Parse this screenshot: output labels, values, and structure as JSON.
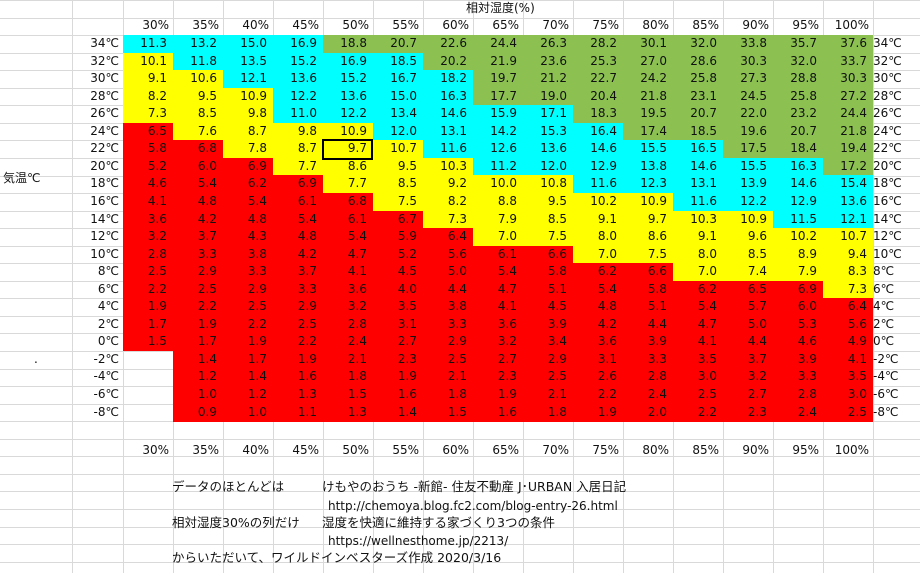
{
  "title": "相対湿度(%)",
  "row_axis_label": "気温℃",
  "humidity_headers": [
    "30%",
    "35%",
    "40%",
    "45%",
    "50%",
    "55%",
    "60%",
    "65%",
    "70%",
    "75%",
    "80%",
    "85%",
    "90%",
    "95%",
    "100%"
  ],
  "temperature_labels": [
    "34℃",
    "32℃",
    "30℃",
    "28℃",
    "26℃",
    "24℃",
    "22℃",
    "20℃",
    "18℃",
    "16℃",
    "14℃",
    "12℃",
    "10℃",
    "8℃",
    "6℃",
    "4℃",
    "2℃",
    "0℃",
    "-2℃",
    "-4℃",
    "-6℃",
    "-8℃"
  ],
  "values": [
    [
      "11.3",
      "13.2",
      "15.0",
      "16.9",
      "18.8",
      "20.7",
      "22.6",
      "24.4",
      "26.3",
      "28.2",
      "30.1",
      "32.0",
      "33.8",
      "35.7",
      "37.6"
    ],
    [
      "10.1",
      "11.8",
      "13.5",
      "15.2",
      "16.9",
      "18.5",
      "20.2",
      "21.9",
      "23.6",
      "25.3",
      "27.0",
      "28.6",
      "30.3",
      "32.0",
      "33.7"
    ],
    [
      "9.1",
      "10.6",
      "12.1",
      "13.6",
      "15.2",
      "16.7",
      "18.2",
      "19.7",
      "21.2",
      "22.7",
      "24.2",
      "25.8",
      "27.3",
      "28.8",
      "30.3"
    ],
    [
      "8.2",
      "9.5",
      "10.9",
      "12.2",
      "13.6",
      "15.0",
      "16.3",
      "17.7",
      "19.0",
      "20.4",
      "21.8",
      "23.1",
      "24.5",
      "25.8",
      "27.2"
    ],
    [
      "7.3",
      "8.5",
      "9.8",
      "11.0",
      "12.2",
      "13.4",
      "14.6",
      "15.9",
      "17.1",
      "18.3",
      "19.5",
      "20.7",
      "22.0",
      "23.2",
      "24.4"
    ],
    [
      "6.5",
      "7.6",
      "8.7",
      "9.8",
      "10.9",
      "12.0",
      "13.1",
      "14.2",
      "15.3",
      "16.4",
      "17.4",
      "18.5",
      "19.6",
      "20.7",
      "21.8"
    ],
    [
      "5.8",
      "6.8",
      "7.8",
      "8.7",
      "9.7",
      "10.7",
      "11.6",
      "12.6",
      "13.6",
      "14.6",
      "15.5",
      "16.5",
      "17.5",
      "18.4",
      "19.4"
    ],
    [
      "5.2",
      "6.0",
      "6.9",
      "7.7",
      "8.6",
      "9.5",
      "10.3",
      "11.2",
      "12.0",
      "12.9",
      "13.8",
      "14.6",
      "15.5",
      "16.3",
      "17.2"
    ],
    [
      "4.6",
      "5.4",
      "6.2",
      "6.9",
      "7.7",
      "8.5",
      "9.2",
      "10.0",
      "10.8",
      "11.6",
      "12.3",
      "13.1",
      "13.9",
      "14.6",
      "15.4"
    ],
    [
      "4.1",
      "4.8",
      "5.4",
      "6.1",
      "6.8",
      "7.5",
      "8.2",
      "8.8",
      "9.5",
      "10.2",
      "10.9",
      "11.6",
      "12.2",
      "12.9",
      "13.6"
    ],
    [
      "3.6",
      "4.2",
      "4.8",
      "5.4",
      "6.1",
      "6.7",
      "7.3",
      "7.9",
      "8.5",
      "9.1",
      "9.7",
      "10.3",
      "10.9",
      "11.5",
      "12.1"
    ],
    [
      "3.2",
      "3.7",
      "4.3",
      "4.8",
      "5.4",
      "5.9",
      "6.4",
      "7.0",
      "7.5",
      "8.0",
      "8.6",
      "9.1",
      "9.6",
      "10.2",
      "10.7"
    ],
    [
      "2.8",
      "3.3",
      "3.8",
      "4.2",
      "4.7",
      "5.2",
      "5.6",
      "6.1",
      "6.6",
      "7.0",
      "7.5",
      "8.0",
      "8.5",
      "8.9",
      "9.4"
    ],
    [
      "2.5",
      "2.9",
      "3.3",
      "3.7",
      "4.1",
      "4.5",
      "5.0",
      "5.4",
      "5.8",
      "6.2",
      "6.6",
      "7.0",
      "7.4",
      "7.9",
      "8.3"
    ],
    [
      "2.2",
      "2.5",
      "2.9",
      "3.3",
      "3.6",
      "4.0",
      "4.4",
      "4.7",
      "5.1",
      "5.4",
      "5.8",
      "6.2",
      "6.5",
      "6.9",
      "7.3"
    ],
    [
      "1.9",
      "2.2",
      "2.5",
      "2.9",
      "3.2",
      "3.5",
      "3.8",
      "4.1",
      "4.5",
      "4.8",
      "5.1",
      "5.4",
      "5.7",
      "6.0",
      "6.4"
    ],
    [
      "1.7",
      "1.9",
      "2.2",
      "2.5",
      "2.8",
      "3.1",
      "3.3",
      "3.6",
      "3.9",
      "4.2",
      "4.4",
      "4.7",
      "5.0",
      "5.3",
      "5.6"
    ],
    [
      "1.5",
      "1.7",
      "1.9",
      "2.2",
      "2.4",
      "2.7",
      "2.9",
      "3.2",
      "3.4",
      "3.6",
      "3.9",
      "4.1",
      "4.4",
      "4.6",
      "4.9"
    ],
    [
      "",
      "1.4",
      "1.7",
      "1.9",
      "2.1",
      "2.3",
      "2.5",
      "2.7",
      "2.9",
      "3.1",
      "3.3",
      "3.5",
      "3.7",
      "3.9",
      "4.1"
    ],
    [
      "",
      "1.2",
      "1.4",
      "1.6",
      "1.8",
      "1.9",
      "2.1",
      "2.3",
      "2.5",
      "2.6",
      "2.8",
      "3.0",
      "3.2",
      "3.3",
      "3.5"
    ],
    [
      "",
      "1.0",
      "1.2",
      "1.3",
      "1.5",
      "1.6",
      "1.8",
      "1.9",
      "2.1",
      "2.2",
      "2.4",
      "2.5",
      "2.7",
      "2.8",
      "3.0"
    ],
    [
      "",
      "0.9",
      "1.0",
      "1.1",
      "1.3",
      "1.4",
      "1.5",
      "1.6",
      "1.8",
      "1.9",
      "2.0",
      "2.2",
      "2.3",
      "2.4",
      "2.5"
    ]
  ],
  "band_colors": {
    "green": "#8cc152",
    "cyan": "#00ffff",
    "yellow": "#ffff00",
    "red": "#ff0000"
  },
  "color_map": [
    [
      "cyan",
      "cyan",
      "cyan",
      "cyan",
      "green",
      "green",
      "green",
      "green",
      "green",
      "green",
      "green",
      "green",
      "green",
      "green",
      "green"
    ],
    [
      "yellow",
      "cyan",
      "cyan",
      "cyan",
      "cyan",
      "cyan",
      "green",
      "green",
      "green",
      "green",
      "green",
      "green",
      "green",
      "green",
      "green"
    ],
    [
      "yellow",
      "yellow",
      "cyan",
      "cyan",
      "cyan",
      "cyan",
      "cyan",
      "green",
      "green",
      "green",
      "green",
      "green",
      "green",
      "green",
      "green"
    ],
    [
      "yellow",
      "yellow",
      "yellow",
      "cyan",
      "cyan",
      "cyan",
      "cyan",
      "green",
      "green",
      "green",
      "green",
      "green",
      "green",
      "green",
      "green"
    ],
    [
      "yellow",
      "yellow",
      "yellow",
      "cyan",
      "cyan",
      "cyan",
      "cyan",
      "cyan",
      "cyan",
      "green",
      "green",
      "green",
      "green",
      "green",
      "green"
    ],
    [
      "red",
      "yellow",
      "yellow",
      "yellow",
      "yellow",
      "cyan",
      "cyan",
      "cyan",
      "cyan",
      "cyan",
      "green",
      "green",
      "green",
      "green",
      "green"
    ],
    [
      "red",
      "red",
      "yellow",
      "yellow",
      "yellow",
      "yellow",
      "cyan",
      "cyan",
      "cyan",
      "cyan",
      "cyan",
      "cyan",
      "green",
      "green",
      "green"
    ],
    [
      "red",
      "red",
      "red",
      "yellow",
      "yellow",
      "yellow",
      "yellow",
      "cyan",
      "cyan",
      "cyan",
      "cyan",
      "cyan",
      "cyan",
      "cyan",
      "green"
    ],
    [
      "red",
      "red",
      "red",
      "red",
      "yellow",
      "yellow",
      "yellow",
      "yellow",
      "yellow",
      "cyan",
      "cyan",
      "cyan",
      "cyan",
      "cyan",
      "cyan"
    ],
    [
      "red",
      "red",
      "red",
      "red",
      "red",
      "yellow",
      "yellow",
      "yellow",
      "yellow",
      "yellow",
      "yellow",
      "cyan",
      "cyan",
      "cyan",
      "cyan"
    ],
    [
      "red",
      "red",
      "red",
      "red",
      "red",
      "red",
      "yellow",
      "yellow",
      "yellow",
      "yellow",
      "yellow",
      "yellow",
      "yellow",
      "cyan",
      "cyan"
    ],
    [
      "red",
      "red",
      "red",
      "red",
      "red",
      "red",
      "red",
      "yellow",
      "yellow",
      "yellow",
      "yellow",
      "yellow",
      "yellow",
      "yellow",
      "yellow"
    ],
    [
      "red",
      "red",
      "red",
      "red",
      "red",
      "red",
      "red",
      "red",
      "red",
      "yellow",
      "yellow",
      "yellow",
      "yellow",
      "yellow",
      "yellow"
    ],
    [
      "red",
      "red",
      "red",
      "red",
      "red",
      "red",
      "red",
      "red",
      "red",
      "red",
      "red",
      "yellow",
      "yellow",
      "yellow",
      "yellow"
    ],
    [
      "red",
      "red",
      "red",
      "red",
      "red",
      "red",
      "red",
      "red",
      "red",
      "red",
      "red",
      "red",
      "red",
      "red",
      "yellow"
    ],
    [
      "red",
      "red",
      "red",
      "red",
      "red",
      "red",
      "red",
      "red",
      "red",
      "red",
      "red",
      "red",
      "red",
      "red",
      "red"
    ],
    [
      "red",
      "red",
      "red",
      "red",
      "red",
      "red",
      "red",
      "red",
      "red",
      "red",
      "red",
      "red",
      "red",
      "red",
      "red"
    ],
    [
      "red",
      "red",
      "red",
      "red",
      "red",
      "red",
      "red",
      "red",
      "red",
      "red",
      "red",
      "red",
      "red",
      "red",
      "red"
    ],
    [
      "white",
      "red",
      "red",
      "red",
      "red",
      "red",
      "red",
      "red",
      "red",
      "red",
      "red",
      "red",
      "red",
      "red",
      "red"
    ],
    [
      "white",
      "red",
      "red",
      "red",
      "red",
      "red",
      "red",
      "red",
      "red",
      "red",
      "red",
      "red",
      "red",
      "red",
      "red"
    ],
    [
      "white",
      "red",
      "red",
      "red",
      "red",
      "red",
      "red",
      "red",
      "red",
      "red",
      "red",
      "red",
      "red",
      "red",
      "red"
    ],
    [
      "white",
      "red",
      "red",
      "red",
      "red",
      "red",
      "red",
      "red",
      "red",
      "red",
      "red",
      "red",
      "red",
      "red",
      "red"
    ]
  ],
  "selected_cell": {
    "row": 6,
    "col": 4,
    "value": "9.7"
  },
  "notes": {
    "line1_label": "データのほとんどは",
    "line1_source": "けもやのおうち -新館- 住友不動産 J･URBAN 入居日記",
    "line1_url": "http://chemoya.blog.fc2.com/blog-entry-26.html",
    "line2_label": "相対湿度30%の列だけ",
    "line2_source": "湿度を快適に維持する家づくり3つの条件",
    "line2_url": "https://wellnesthome.jp/2213/",
    "line3": "からいただいて、ワイルドインベスターズ作成 2020/3/16"
  },
  "stray_mark": "."
}
